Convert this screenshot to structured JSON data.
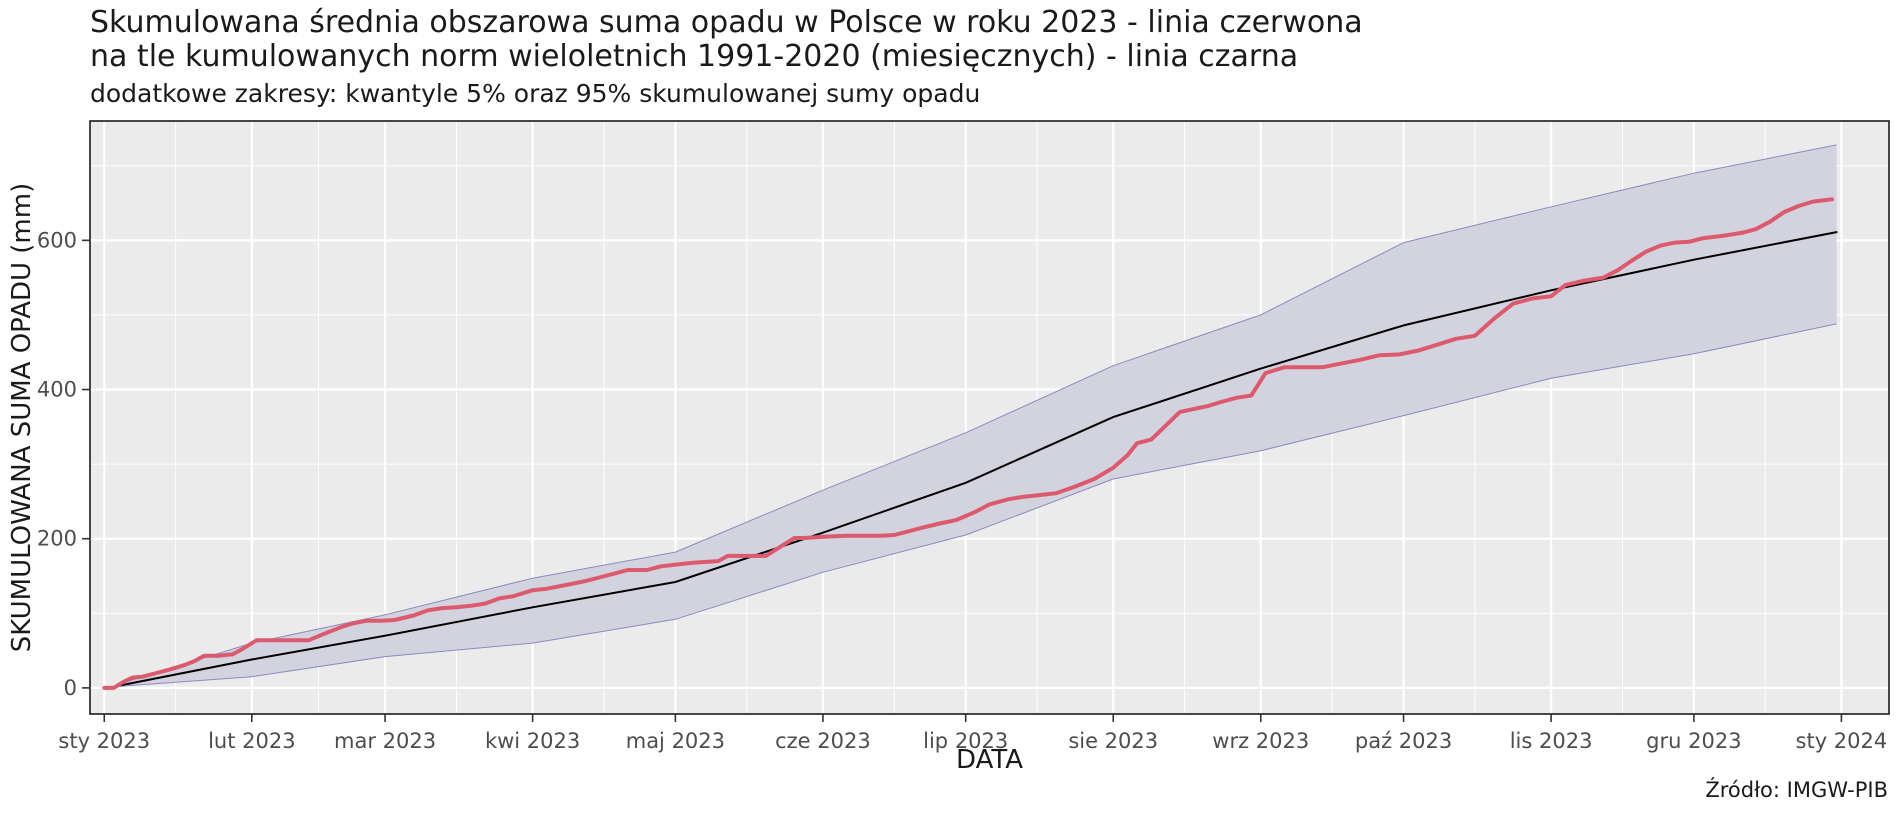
{
  "title_line1": "Skumulowana średnia obszarowa suma opadu w Polsce w roku 2023 - linia czerwona",
  "title_line2": "na tle kumulowanych norm wieloletnich 1991-2020 (miesięcznych) - linia czarna",
  "subtitle": "dodatkowe zakresy: kwantyle 5% oraz 95% skumulowanej sumy opadu",
  "caption": "Źródło: IMGW-PIB",
  "colors": {
    "panel_bg": "#ebebeb",
    "grid": "#ffffff",
    "band_fill": "#d3d3e0",
    "band_stroke": "#8a8ac0",
    "observed": "#dc5a6e",
    "norm": "#000000"
  },
  "chart_data": {
    "type": "line",
    "xlabel": "DATA",
    "ylabel": "SKUMULOWANA SUMA OPADU (mm)",
    "xlim": [
      "2022-12-29",
      "2024-01-11"
    ],
    "ylim": [
      -35,
      760
    ],
    "x_ticks": [
      {
        "date": "2023-01-01",
        "label": "sty 2023"
      },
      {
        "date": "2023-02-01",
        "label": "lut 2023"
      },
      {
        "date": "2023-03-01",
        "label": "mar 2023"
      },
      {
        "date": "2023-04-01",
        "label": "kwi 2023"
      },
      {
        "date": "2023-05-01",
        "label": "maj 2023"
      },
      {
        "date": "2023-06-01",
        "label": "cze 2023"
      },
      {
        "date": "2023-07-01",
        "label": "lip 2023"
      },
      {
        "date": "2023-08-01",
        "label": "sie 2023"
      },
      {
        "date": "2023-09-01",
        "label": "wrz 2023"
      },
      {
        "date": "2023-10-01",
        "label": "paź 2023"
      },
      {
        "date": "2023-11-01",
        "label": "lis 2023"
      },
      {
        "date": "2023-12-01",
        "label": "gru 2023"
      },
      {
        "date": "2024-01-01",
        "label": "sty 2024"
      }
    ],
    "y_ticks": [
      0,
      200,
      400,
      600
    ],
    "grid": true,
    "legend": "none",
    "band": {
      "x": [
        "2023-01-04",
        "2023-02-01",
        "2023-03-01",
        "2023-04-01",
        "2023-05-01",
        "2023-06-01",
        "2023-07-01",
        "2023-08-01",
        "2023-09-01",
        "2023-10-01",
        "2023-11-01",
        "2023-12-01",
        "2023-12-31"
      ],
      "lower": [
        2,
        15,
        42,
        60,
        92,
        155,
        205,
        280,
        318,
        365,
        415,
        448,
        488
      ],
      "upper": [
        5,
        60,
        98,
        147,
        182,
        265,
        342,
        432,
        500,
        597,
        645,
        690,
        728
      ]
    },
    "series": [
      {
        "style": "norm",
        "x": [
          "2023-01-04",
          "2023-02-01",
          "2023-03-01",
          "2023-04-01",
          "2023-05-01",
          "2023-06-01",
          "2023-07-01",
          "2023-08-01",
          "2023-09-01",
          "2023-10-01",
          "2023-11-01",
          "2023-12-01",
          "2023-12-31"
        ],
        "y": [
          3,
          38,
          70,
          108,
          142,
          208,
          275,
          363,
          428,
          486,
          533,
          574,
          611
        ]
      },
      {
        "style": "observed",
        "x": [
          "2023-01-01",
          "2023-01-03",
          "2023-01-05",
          "2023-01-07",
          "2023-01-09",
          "2023-01-12",
          "2023-01-15",
          "2023-01-18",
          "2023-01-20",
          "2023-01-22",
          "2023-01-25",
          "2023-01-28",
          "2023-01-30",
          "2023-02-02",
          "2023-02-05",
          "2023-02-09",
          "2023-02-13",
          "2023-02-16",
          "2023-02-20",
          "2023-02-22",
          "2023-02-25",
          "2023-02-28",
          "2023-03-03",
          "2023-03-07",
          "2023-03-10",
          "2023-03-13",
          "2023-03-16",
          "2023-03-19",
          "2023-03-22",
          "2023-03-25",
          "2023-03-28",
          "2023-04-01",
          "2023-04-04",
          "2023-04-08",
          "2023-04-12",
          "2023-04-15",
          "2023-04-18",
          "2023-04-21",
          "2023-04-25",
          "2023-04-28",
          "2023-05-02",
          "2023-05-05",
          "2023-05-10",
          "2023-05-12",
          "2023-05-20",
          "2023-05-22",
          "2023-05-26",
          "2023-05-28",
          "2023-06-02",
          "2023-06-06",
          "2023-06-10",
          "2023-06-13",
          "2023-06-16",
          "2023-06-19",
          "2023-06-22",
          "2023-06-26",
          "2023-06-29",
          "2023-07-03",
          "2023-07-06",
          "2023-07-10",
          "2023-07-13",
          "2023-07-16",
          "2023-07-20",
          "2023-07-24",
          "2023-07-28",
          "2023-08-01",
          "2023-08-04",
          "2023-08-06",
          "2023-08-09",
          "2023-08-15",
          "2023-08-18",
          "2023-08-21",
          "2023-08-24",
          "2023-08-27",
          "2023-08-30",
          "2023-09-02",
          "2023-09-06",
          "2023-09-10",
          "2023-09-14",
          "2023-09-18",
          "2023-09-22",
          "2023-09-26",
          "2023-09-30",
          "2023-10-04",
          "2023-10-08",
          "2023-10-12",
          "2023-10-16",
          "2023-10-20",
          "2023-10-24",
          "2023-10-28",
          "2023-11-01",
          "2023-11-04",
          "2023-11-08",
          "2023-11-12",
          "2023-11-15",
          "2023-11-18",
          "2023-11-21",
          "2023-11-24",
          "2023-11-27",
          "2023-11-30",
          "2023-12-03",
          "2023-12-07",
          "2023-12-11",
          "2023-12-14",
          "2023-12-17",
          "2023-12-20",
          "2023-12-23",
          "2023-12-26",
          "2023-12-30"
        ],
        "y": [
          0,
          0,
          8,
          14,
          15,
          20,
          25,
          31,
          36,
          43,
          43,
          45,
          52,
          64,
          64,
          64,
          64,
          72,
          82,
          86,
          90,
          90,
          91,
          97,
          104,
          107,
          108,
          110,
          113,
          120,
          123,
          131,
          133,
          138,
          143,
          148,
          153,
          158,
          158,
          163,
          166,
          168,
          170,
          177,
          177,
          185,
          201,
          201,
          203,
          204,
          204,
          204,
          205,
          210,
          215,
          221,
          225,
          236,
          246,
          253,
          256,
          258,
          261,
          270,
          280,
          295,
          312,
          328,
          333,
          370,
          374,
          378,
          384,
          389,
          392,
          422,
          430,
          430,
          430,
          435,
          440,
          446,
          447,
          452,
          460,
          468,
          472,
          495,
          515,
          522,
          525,
          540,
          546,
          550,
          560,
          573,
          585,
          593,
          597,
          598,
          603,
          606,
          610,
          615,
          625,
          638,
          646,
          652,
          655
        ]
      }
    ]
  }
}
